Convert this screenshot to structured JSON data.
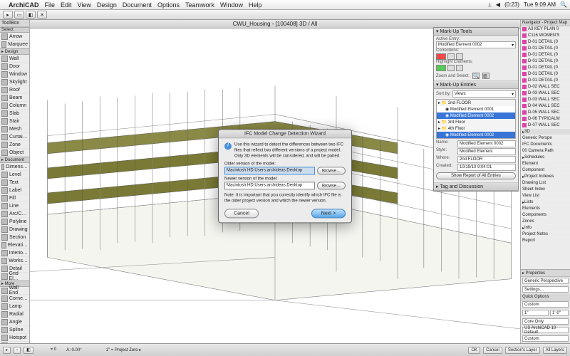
{
  "menubar": {
    "apple": "",
    "app": "ArchiCAD",
    "items": [
      "File",
      "Edit",
      "View",
      "Design",
      "Document",
      "Options",
      "Teamwork",
      "Window",
      "Help"
    ],
    "right": {
      "time": "Tue 9:09 AM",
      "batt": "(0:23)"
    }
  },
  "titlebar": "CWU_Housing - [100408] 3D / All",
  "toolbox": {
    "title": "ToolBox",
    "select_sec": "Select",
    "design_sec": "▸ Design",
    "doc_sec": "▸ Document",
    "more_sec": "▸ More",
    "select": [
      "Arrow",
      "Marquee"
    ],
    "design": [
      "Wall",
      "Door",
      "Window",
      "Skylight",
      "Roof",
      "Beam",
      "Column",
      "Slab",
      "Stair",
      "Mesh",
      "Curtai…",
      "Zone",
      "Object"
    ],
    "document": [
      "Dimens…",
      "Level",
      "Text",
      "Label",
      "Fill",
      "Line",
      "Arc/C…",
      "Polyline",
      "Drawing",
      "Section",
      "Elevati…",
      "Interio…",
      "Works…",
      "Detail",
      "Grid El…"
    ],
    "more": [
      "Wall End",
      "Corne…",
      "Lamp",
      "Radial",
      "Angle",
      "Spline",
      "Hotspot",
      "Figure",
      "Camera"
    ]
  },
  "markup": {
    "title": "▾ Mark-Up Tools",
    "active_entry_lbl": "Active Entry:",
    "active_entry": "Modified Element 0002",
    "corrections_lbl": "Corrections:",
    "highlight_lbl": "Highlight Elements:",
    "zoom_lbl": "Zoom and Select:",
    "entries_title": "▾ Mark-Up Entries",
    "sortby_lbl": "Sort by:",
    "sortby": "Views",
    "floors": [
      {
        "name": "2nd FLOOR",
        "items": [
          "Modified Element 0001",
          "Modified Element 0002"
        ]
      },
      {
        "name": "3rd Floor",
        "items": []
      },
      {
        "name": "4th Floor",
        "items": [
          "Modified Element 0002"
        ]
      }
    ],
    "name_lbl": "Name:",
    "name": "Modified Element 0002",
    "style_lbl": "Style:",
    "style": "Modified Element",
    "where_lbl": "Where:",
    "where": "2nd FLOOR",
    "created_lbl": "Created:",
    "created": "10/19/10 9:04:01",
    "report_btn": "Show Report of All Entries",
    "tag_title": "▸ Tag and Discussion"
  },
  "navigator": {
    "title": "Navigator - Project Map",
    "items": [
      "A3 KEY PLAN 0",
      "C116 WOMEN'S",
      "D-01 DETAIL (0",
      "D-01 DETAIL (0",
      "D-01 DETAIL (0",
      "D-01 DETAIL (0",
      "D-01 DETAIL (0",
      "D-01 DETAIL (0",
      "D-01 DETAIL (0",
      "D-02 WALL SEC",
      "D-03 WALL SEC",
      "D-03 WALL SEC",
      "D-04 WALL SEC",
      "D-05 WALL SEC",
      "D-06 TYPICALM",
      "D-07 WALL SEC"
    ],
    "sec_3d": "3D",
    "sec_generic": "Generic Perspe",
    "sec_ifc": "IFC Documents",
    "sec_cam": "00 Camera Path",
    "schedules": "Schedules",
    "sched_items": [
      "Element",
      "Component"
    ],
    "indexes": "Project Indexes",
    "idx_items": [
      "Drawing List",
      "Sheet Index",
      "View List"
    ],
    "lists": "Lists",
    "list_items": [
      "Elements",
      "Components",
      "Zones"
    ],
    "info": "Info",
    "info_items": [
      "Project Notes",
      "Report"
    ]
  },
  "dialog": {
    "title": "IFC Model Change Detection Wizard",
    "info": "Use this wizard to detect the differences between two IFC files that reflect two different versions of a project model.\nOnly 3D elements will be considered, and will be paired",
    "older_lbl": "Older version of the model:",
    "older_val": "Macintosh HD:Users:archideas:Desktop",
    "newer_lbl": "Newer version of the model:",
    "newer_val": "Macintosh HD:Users:archideas:Desktop",
    "browse": "Browse…",
    "note": "Note: It is important that you correctly identify which IFC file is the older project version and which the newer version.",
    "cancel": "Cancel",
    "next": "Next >"
  },
  "props": {
    "title": "▸ Properties",
    "persp": "Generic Perspective",
    "settings": "Settings…",
    "quick": "Quick Options",
    "rows": [
      {
        "l": "Custom",
        "r": ""
      },
      {
        "l": "1\"",
        "r": "1'-0\""
      },
      {
        "l": "Core Only",
        "r": ""
      },
      {
        "l": "US ArchiCAD 10 Default",
        "r": ""
      },
      {
        "l": "Custom",
        "r": ""
      }
    ]
  },
  "statusbar": {
    "ok": "OK",
    "cancel": "Cancel",
    "layers": "All Layers",
    "layer2": "Section's Layer"
  },
  "colors": {
    "olive": "#7a7a36",
    "wire": "#888888",
    "wire_dark": "#555555"
  }
}
